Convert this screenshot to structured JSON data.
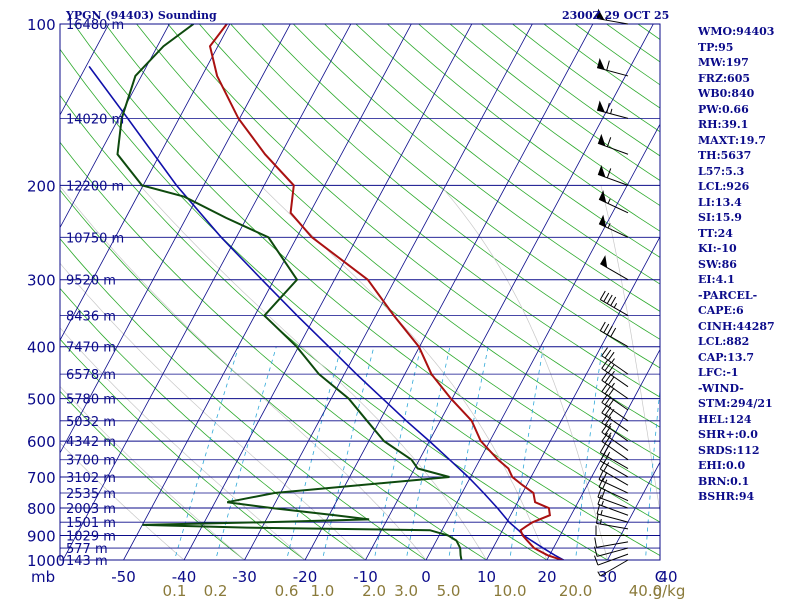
{
  "header": {
    "title": "YPGN (94403) Sounding",
    "datetime": "2300Z 29 OCT 25"
  },
  "indices": [
    "WMO:94403",
    "TP:95",
    "MW:197",
    "FRZ:605",
    "WB0:840",
    "PW:0.66",
    "RH:39.1",
    "MAXT:19.7",
    "TH:5637",
    "L57:5.3",
    "LCL:926",
    "LI:13.4",
    "SI:15.9",
    "TT:24",
    "KI:-10",
    "SW:86",
    "EI:4.1",
    "-PARCEL-",
    "CAPE:6",
    "CINH:44287",
    "LCL:882",
    "CAP:13.7",
    "LFC:-1",
    "-WIND-",
    "STM:294/21",
    "HEL:124",
    "SHR+:0.0",
    "SRDS:112",
    "EHI:0.0",
    "BRN:0.1",
    "BSHR:94"
  ],
  "colors": {
    "isobar": "#0b0b8a",
    "isotherm": "#0b0b8a",
    "dry_adiabat": "#2eaa2e",
    "moist_adiabat": "#c8c8c8",
    "mixing_ratio": "#8a7a3a",
    "temperature": "#aa1111",
    "dewpoint": "#0e4a0e",
    "parcel": "#1010aa",
    "mixing_ratio_label": "#8a7a3a",
    "text": "#0b0b8a"
  },
  "chart_data": {
    "type": "skew-t",
    "title": "YPGN (94403) Sounding",
    "x_unit_label": "mb",
    "mixing_ratio_unit": "g/kg",
    "pressure_levels": [
      100,
      200,
      300,
      400,
      500,
      600,
      700,
      800,
      900,
      1000
    ],
    "pressure_range": [
      1000,
      100
    ],
    "temperature_ticks": [
      -50,
      -40,
      -30,
      -20,
      -10,
      0,
      10,
      20,
      30,
      40,
      "C"
    ],
    "mixing_ratio_labels": [
      "0.1",
      "0.2",
      "0.6",
      "1.0",
      "2.0",
      "3.0",
      "5.0",
      "10.0",
      "20.0",
      "40.0"
    ],
    "mixing_ratio_values": [
      0.1,
      0.2,
      0.6,
      1.0,
      2.0,
      3.0,
      5.0,
      10.0,
      20.0,
      40.0
    ],
    "heights": [
      {
        "p": 100,
        "label": "16480 m"
      },
      {
        "p": 150,
        "label": "14020 m"
      },
      {
        "p": 200,
        "label": "12200 m"
      },
      {
        "p": 250,
        "label": "10750 m"
      },
      {
        "p": 300,
        "label": "9520 m"
      },
      {
        "p": 350,
        "label": "8436 m"
      },
      {
        "p": 400,
        "label": "7470 m"
      },
      {
        "p": 450,
        "label": "6578 m"
      },
      {
        "p": 500,
        "label": "5780 m"
      },
      {
        "p": 550,
        "label": "5032 m"
      },
      {
        "p": 600,
        "label": "4342 m"
      },
      {
        "p": 650,
        "label": "3700 m"
      },
      {
        "p": 700,
        "label": "3102 m"
      },
      {
        "p": 750,
        "label": "2535 m"
      },
      {
        "p": 800,
        "label": "2003 m"
      },
      {
        "p": 850,
        "label": "1501 m"
      },
      {
        "p": 900,
        "label": "1029 m"
      },
      {
        "p": 950,
        "label": "577 m"
      },
      {
        "p": 1000,
        "label": "143 m"
      }
    ],
    "temperature_profile": [
      [
        1005,
        23.2
      ],
      [
        980,
        19.7
      ],
      [
        950,
        16.8
      ],
      [
        920,
        15.0
      ],
      [
        900,
        13.8
      ],
      [
        880,
        13.0
      ],
      [
        865,
        13.6
      ],
      [
        850,
        14.3
      ],
      [
        825,
        16.5
      ],
      [
        800,
        15.7
      ],
      [
        780,
        12.9
      ],
      [
        750,
        11.8
      ],
      [
        725,
        9.3
      ],
      [
        700,
        6.9
      ],
      [
        675,
        5.5
      ],
      [
        650,
        3.0
      ],
      [
        600,
        -1.5
      ],
      [
        550,
        -4.8
      ],
      [
        500,
        -10.2
      ],
      [
        450,
        -15.6
      ],
      [
        400,
        -20.1
      ],
      [
        350,
        -27.0
      ],
      [
        300,
        -34.5
      ],
      [
        250,
        -47.5
      ],
      [
        225,
        -53.2
      ],
      [
        200,
        -55.1
      ],
      [
        175,
        -62.6
      ],
      [
        150,
        -70.2
      ],
      [
        125,
        -77.5
      ],
      [
        110,
        -81.3
      ],
      [
        100,
        -80.5
      ]
    ],
    "dewpoint_profile": [
      [
        1005,
        6.0
      ],
      [
        980,
        5.3
      ],
      [
        950,
        4.6
      ],
      [
        920,
        3.3
      ],
      [
        900,
        1.5
      ],
      [
        880,
        -2.0
      ],
      [
        870,
        -32.5
      ],
      [
        860,
        -50.0
      ],
      [
        850,
        -30.0
      ],
      [
        840,
        -13.0
      ],
      [
        825,
        -19.0
      ],
      [
        800,
        -30.0
      ],
      [
        780,
        -38.0
      ],
      [
        750,
        -31.0
      ],
      [
        700,
        -3.5
      ],
      [
        675,
        -9.5
      ],
      [
        650,
        -11.3
      ],
      [
        600,
        -17.5
      ],
      [
        550,
        -22.1
      ],
      [
        500,
        -27.1
      ],
      [
        450,
        -34.2
      ],
      [
        400,
        -40.3
      ],
      [
        350,
        -48.4
      ],
      [
        300,
        -46.2
      ],
      [
        250,
        -54.7
      ],
      [
        230,
        -63.4
      ],
      [
        210,
        -72.2
      ],
      [
        200,
        -80.2
      ],
      [
        175,
        -87.0
      ],
      [
        150,
        -89.5
      ],
      [
        125,
        -91.0
      ],
      [
        110,
        -89.0
      ],
      [
        100,
        -86.0
      ]
    ],
    "parcel_profile": [
      [
        1005,
        23.2
      ],
      [
        980,
        20.9
      ],
      [
        950,
        18.3
      ],
      [
        920,
        15.7
      ],
      [
        900,
        14.0
      ],
      [
        882,
        12.8
      ],
      [
        850,
        10.4
      ],
      [
        800,
        7.2
      ],
      [
        750,
        3.6
      ],
      [
        700,
        -0.4
      ],
      [
        650,
        -5.0
      ],
      [
        600,
        -10.0
      ],
      [
        550,
        -15.6
      ],
      [
        500,
        -21.5
      ],
      [
        450,
        -28.0
      ],
      [
        400,
        -35.0
      ],
      [
        350,
        -43.0
      ],
      [
        300,
        -52.0
      ],
      [
        250,
        -62.5
      ],
      [
        200,
        -74.5
      ],
      [
        150,
        -88.5
      ],
      [
        120,
        -99.5
      ]
    ],
    "wind_barbs": [
      {
        "p": 1000,
        "dir": 240,
        "spd": 8
      },
      {
        "p": 975,
        "dir": 250,
        "spd": 10
      },
      {
        "p": 950,
        "dir": 255,
        "spd": 10
      },
      {
        "p": 925,
        "dir": 260,
        "spd": 12
      },
      {
        "p": 900,
        "dir": 270,
        "spd": 14
      },
      {
        "p": 875,
        "dir": 280,
        "spd": 15
      },
      {
        "p": 850,
        "dir": 285,
        "spd": 16
      },
      {
        "p": 825,
        "dir": 290,
        "spd": 18
      },
      {
        "p": 800,
        "dir": 290,
        "spd": 20
      },
      {
        "p": 775,
        "dir": 295,
        "spd": 20
      },
      {
        "p": 750,
        "dir": 295,
        "spd": 22
      },
      {
        "p": 725,
        "dir": 300,
        "spd": 22
      },
      {
        "p": 700,
        "dir": 300,
        "spd": 24
      },
      {
        "p": 675,
        "dir": 300,
        "spd": 25
      },
      {
        "p": 650,
        "dir": 305,
        "spd": 26
      },
      {
        "p": 625,
        "dir": 305,
        "spd": 27
      },
      {
        "p": 600,
        "dir": 305,
        "spd": 28
      },
      {
        "p": 575,
        "dir": 305,
        "spd": 30
      },
      {
        "p": 550,
        "dir": 305,
        "spd": 32
      },
      {
        "p": 525,
        "dir": 305,
        "spd": 33
      },
      {
        "p": 500,
        "dir": 305,
        "spd": 35
      },
      {
        "p": 475,
        "dir": 305,
        "spd": 36
      },
      {
        "p": 450,
        "dir": 305,
        "spd": 38
      },
      {
        "p": 400,
        "dir": 300,
        "spd": 40
      },
      {
        "p": 350,
        "dir": 300,
        "spd": 45
      },
      {
        "p": 300,
        "dir": 300,
        "spd": 50
      },
      {
        "p": 250,
        "dir": 295,
        "spd": 55
      },
      {
        "p": 225,
        "dir": 295,
        "spd": 55
      },
      {
        "p": 200,
        "dir": 290,
        "spd": 60
      },
      {
        "p": 175,
        "dir": 290,
        "spd": 60
      },
      {
        "p": 150,
        "dir": 285,
        "spd": 65
      },
      {
        "p": 125,
        "dir": 285,
        "spd": 60
      },
      {
        "p": 100,
        "dir": 280,
        "spd": 55
      }
    ],
    "grid": true,
    "legend": "none"
  }
}
